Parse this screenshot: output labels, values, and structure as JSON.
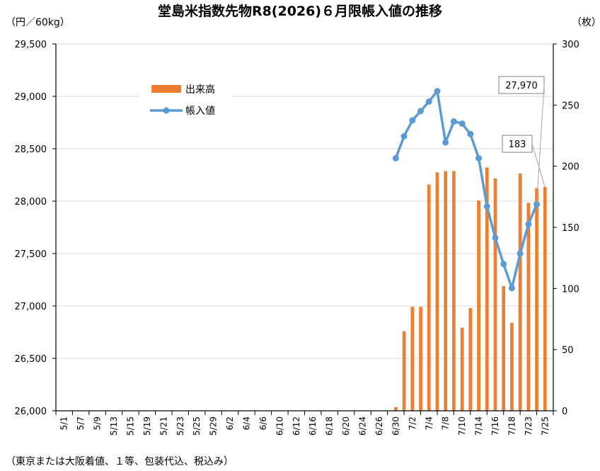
{
  "chart_data": {
    "type": "bar+line",
    "title": "堂島米指数先物R8(2026)６月限帳入値の推移",
    "left_axis_unit": "（円／60kg）",
    "right_axis_unit": "（枚）",
    "left_axis": {
      "min": 26000,
      "max": 29500,
      "step": 500,
      "tick_labels": [
        "26,000",
        "26,500",
        "27,000",
        "27,500",
        "28,000",
        "28,500",
        "29,000",
        "29,500"
      ]
    },
    "right_axis": {
      "min": 0,
      "max": 300,
      "step": 50,
      "tick_labels": [
        "0",
        "50",
        "100",
        "150",
        "200",
        "250",
        "300"
      ]
    },
    "x_tick_labels": [
      "5/1",
      "5/7",
      "5/9",
      "5/13",
      "5/15",
      "5/19",
      "5/21",
      "5/23",
      "5/25",
      "5/29",
      "6/2",
      "6/4",
      "6/6",
      "6/10",
      "6/12",
      "6/16",
      "6/18",
      "6/20",
      "6/24",
      "6/26",
      "6/30",
      "7/2",
      "7/4",
      "7/8",
      "7/10",
      "7/14",
      "7/16",
      "7/18",
      "7/23",
      "7/25"
    ],
    "dates": [
      "5/1",
      "5/7",
      "5/9",
      "5/13",
      "5/15",
      "5/19",
      "5/21",
      "5/23",
      "5/25",
      "5/29",
      "6/2",
      "6/4",
      "6/6",
      "6/10",
      "6/12",
      "6/16",
      "6/18",
      "6/20",
      "6/24",
      "6/26",
      "6/30",
      "7/1",
      "7/2",
      "7/3",
      "7/4",
      "7/7",
      "7/8",
      "7/9",
      "7/10",
      "7/11",
      "7/14",
      "7/15",
      "7/16",
      "7/17",
      "7/18",
      "7/22",
      "7/23",
      "7/24",
      "7/25"
    ],
    "slot_index": [
      0,
      1,
      2,
      3,
      4,
      5,
      6,
      7,
      8,
      9,
      10,
      11,
      12,
      13,
      14,
      15,
      16,
      17,
      18,
      19,
      20,
      20.5,
      21,
      21.5,
      22,
      22.5,
      23,
      23.5,
      24,
      24.5,
      25,
      25.5,
      26,
      26.5,
      27,
      27.5,
      28,
      28.5,
      29
    ],
    "series": [
      {
        "name": "出来高",
        "axis": "right",
        "kind": "bar",
        "color": "#ED7D31",
        "values": [
          0,
          0,
          0,
          0,
          0,
          0,
          0,
          0,
          0,
          0,
          0,
          0,
          0,
          0,
          0,
          0,
          0,
          0,
          0,
          0,
          3,
          65,
          85,
          85,
          185,
          195,
          196,
          196,
          68,
          84,
          172,
          199,
          190,
          102,
          72,
          194,
          170,
          182,
          183
        ]
      },
      {
        "name": "帳入値",
        "axis": "left",
        "kind": "line",
        "color": "#5B9BD5",
        "values": [
          null,
          null,
          null,
          null,
          null,
          null,
          null,
          null,
          null,
          null,
          null,
          null,
          null,
          null,
          null,
          null,
          null,
          null,
          null,
          null,
          28410,
          28620,
          28770,
          28860,
          28950,
          29050,
          28560,
          28760,
          28740,
          28640,
          28410,
          27950,
          27650,
          27400,
          27170,
          27500,
          27780,
          27970,
          null
        ]
      }
    ],
    "legend": {
      "placement": "upper-left",
      "items": [
        "出来高",
        "帳入値"
      ]
    },
    "annotations": [
      {
        "text": "27,970",
        "series": "帳入値",
        "date": "7/25"
      },
      {
        "text": "183",
        "series": "出来高",
        "date": "7/25"
      }
    ],
    "grid": "horizontal",
    "footnote": "（東京または大阪着値、１等、包装代込、税込み）"
  }
}
